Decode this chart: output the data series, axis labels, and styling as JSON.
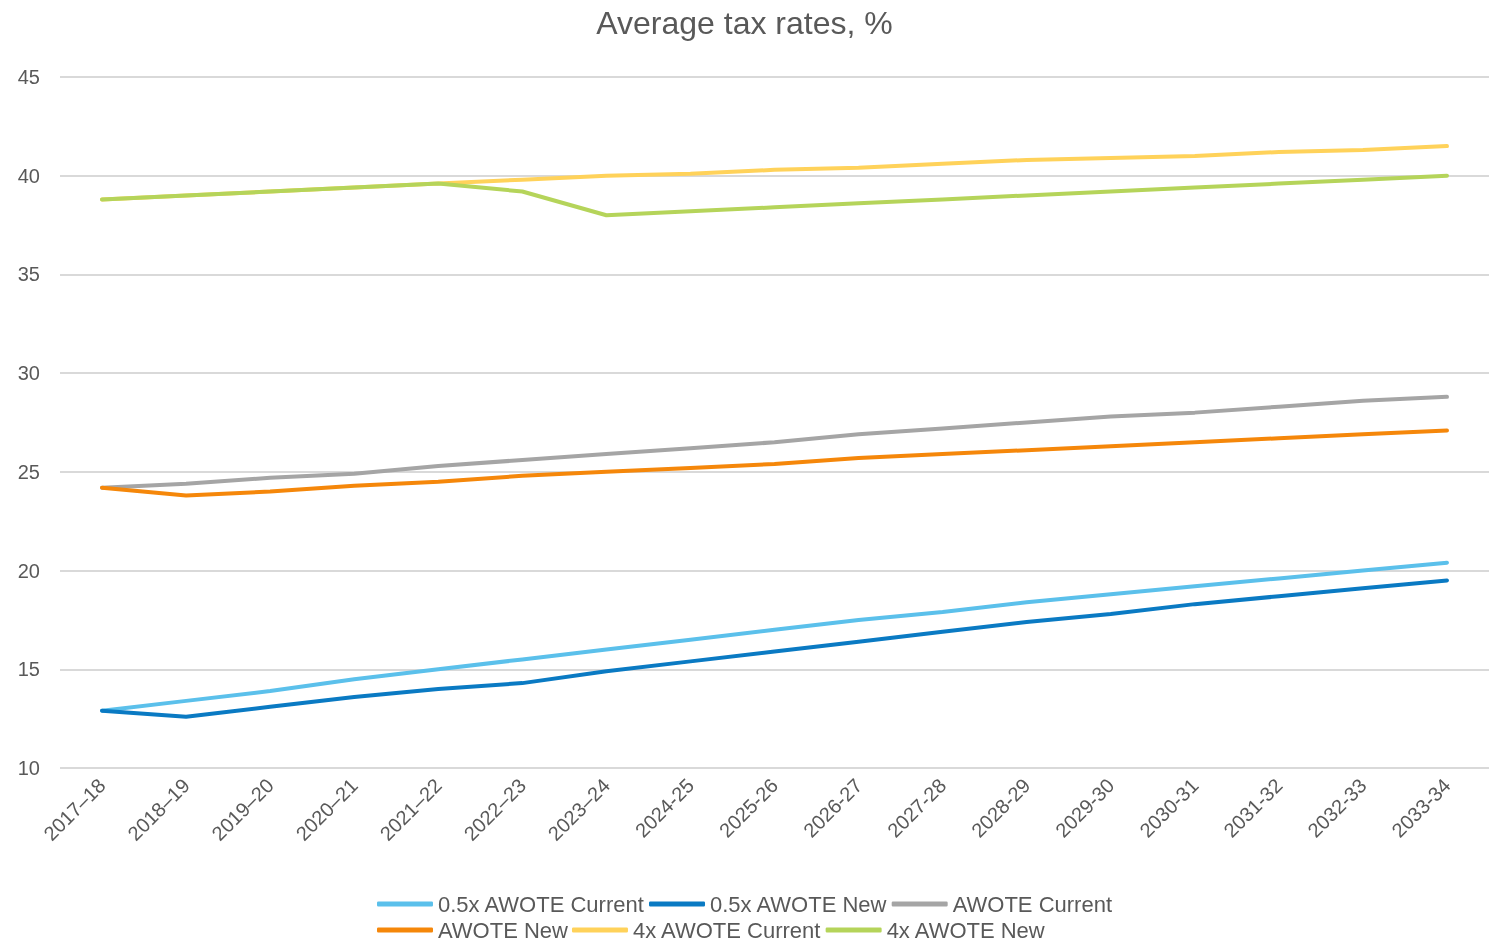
{
  "chart_data": {
    "type": "line",
    "title": "Average tax rates, %",
    "categories": [
      "2017–18",
      "2018–19",
      "2019–20",
      "2020–21",
      "2021–22",
      "2022–23",
      "2023–24",
      "2024-25",
      "2025-26",
      "2026-27",
      "2027-28",
      "2028-29",
      "2029-30",
      "2030-31",
      "2031-32",
      "2032-33",
      "2033-34"
    ],
    "series": [
      {
        "name": "0.5x AWOTE Current",
        "color": "#5bc0eb",
        "values": [
          12.9,
          13.4,
          13.9,
          14.5,
          15.0,
          15.5,
          16.0,
          16.5,
          17.0,
          17.5,
          17.9,
          18.4,
          18.8,
          19.2,
          19.6,
          20.0,
          20.4
        ]
      },
      {
        "name": "0.5x AWOTE New",
        "color": "#0a7ac3",
        "values": [
          12.9,
          12.6,
          13.1,
          13.6,
          14.0,
          14.3,
          14.9,
          15.4,
          15.9,
          16.4,
          16.9,
          17.4,
          17.8,
          18.3,
          18.7,
          19.1,
          19.5
        ]
      },
      {
        "name": "AWOTE Current",
        "color": "#a5a5a5",
        "values": [
          24.2,
          24.4,
          24.7,
          24.9,
          25.3,
          25.6,
          25.9,
          26.2,
          26.5,
          26.9,
          27.2,
          27.5,
          27.8,
          28.0,
          28.3,
          28.6,
          28.8
        ]
      },
      {
        "name": "AWOTE New",
        "color": "#f5870a",
        "values": [
          24.2,
          23.8,
          24.0,
          24.3,
          24.5,
          24.8,
          25.0,
          25.2,
          25.4,
          25.7,
          25.9,
          26.1,
          26.3,
          26.5,
          26.7,
          26.9,
          27.1
        ]
      },
      {
        "name": "4x AWOTE Current",
        "color": "#ffd25a",
        "values": [
          38.8,
          39.0,
          39.2,
          39.4,
          39.6,
          39.8,
          40.0,
          40.1,
          40.3,
          40.4,
          40.6,
          40.8,
          40.9,
          41.0,
          41.2,
          41.3,
          41.5
        ]
      },
      {
        "name": "4x AWOTE New",
        "color": "#b5d45a",
        "values": [
          38.8,
          39.0,
          39.2,
          39.4,
          39.6,
          39.2,
          38.0,
          38.2,
          38.4,
          38.6,
          38.8,
          39.0,
          39.2,
          39.4,
          39.6,
          39.8,
          40.0
        ]
      }
    ],
    "ylim": [
      10,
      45
    ],
    "yticks": [
      10,
      15,
      20,
      25,
      30,
      35,
      40,
      45
    ],
    "grid": "y",
    "legend": "bottom",
    "marker": "none",
    "line_style": "solid"
  }
}
